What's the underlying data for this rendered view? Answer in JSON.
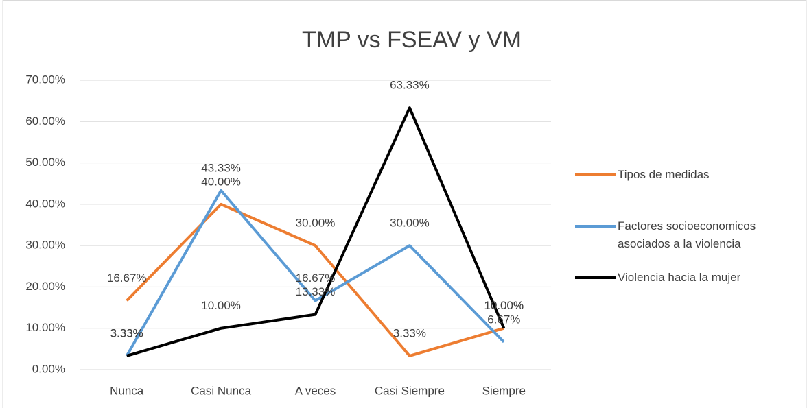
{
  "chart_data": {
    "type": "line",
    "title": "TMP vs FSEAV y VM",
    "categories": [
      "Nunca",
      "Casi Nunca",
      "A veces",
      "Casi Siempre",
      "Siempre"
    ],
    "series": [
      {
        "name": "Tipos de medidas",
        "color": "#ed7d31",
        "values": [
          16.67,
          40.0,
          30.0,
          3.33,
          10.0
        ],
        "value_labels": [
          "16.67%",
          "40.00%",
          "30.00%",
          "3.33%",
          "10.00%"
        ]
      },
      {
        "name": "Factores socioeconomicos asociados a la violencia",
        "color": "#5b9bd5",
        "values": [
          3.33,
          43.33,
          16.67,
          30.0,
          6.67
        ],
        "value_labels": [
          "3.33%",
          "43.33%",
          "16.67%",
          "30.00%",
          "6.67%"
        ]
      },
      {
        "name": "Violencia hacia la mujer",
        "color": "#000000",
        "values": [
          3.33,
          10.0,
          13.33,
          63.33,
          10.0
        ],
        "value_labels": [
          "3.33%",
          "10.00%",
          "13.33%",
          "63.33%",
          "10.00%"
        ]
      }
    ],
    "ylim": [
      0,
      70
    ],
    "yticks": [
      {
        "value": 0,
        "label": "0.00%"
      },
      {
        "value": 10,
        "label": "10.00%"
      },
      {
        "value": 20,
        "label": "20.00%"
      },
      {
        "value": 30,
        "label": "30.00%"
      },
      {
        "value": 40,
        "label": "40.00%"
      },
      {
        "value": 50,
        "label": "50.00%"
      },
      {
        "value": 60,
        "label": "60.00%"
      },
      {
        "value": 70,
        "label": "70.00%"
      }
    ],
    "grid": true,
    "legend": "right"
  }
}
